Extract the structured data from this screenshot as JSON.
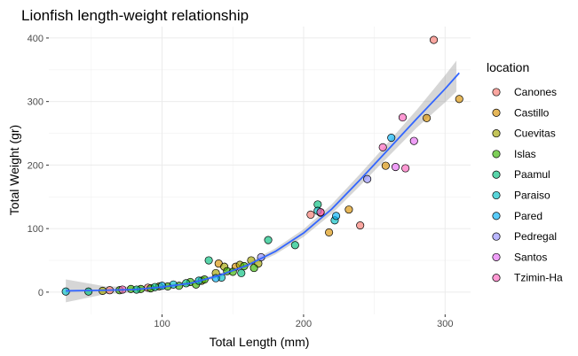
{
  "chart_data": {
    "type": "scatter",
    "title": "Lionfish length-weight relationship",
    "xlabel": "Total Length (mm)",
    "ylabel": "Total Weight (gr)",
    "xlim": [
      20,
      318
    ],
    "ylim": [
      -35,
      418
    ],
    "x_ticks": [
      100,
      200,
      300
    ],
    "y_ticks": [
      0,
      100,
      200,
      300,
      400
    ],
    "grid": true,
    "legend": {
      "title": "location",
      "position": "right"
    },
    "series": [
      {
        "name": "Canones",
        "color": "#F8766D",
        "points": [
          [
            63,
            3
          ],
          [
            90,
            7
          ],
          [
            205,
            122
          ],
          [
            212,
            125
          ],
          [
            240,
            105
          ],
          [
            292,
            397
          ]
        ]
      },
      {
        "name": "Castillo",
        "color": "#D89000",
        "points": [
          [
            140,
            45
          ],
          [
            152,
            40
          ],
          [
            218,
            94
          ],
          [
            232,
            130
          ],
          [
            258,
            199
          ],
          [
            287,
            274
          ],
          [
            310,
            304
          ]
        ]
      },
      {
        "name": "Cuevitas",
        "color": "#A3A500",
        "points": [
          [
            58,
            2
          ],
          [
            98,
            9
          ],
          [
            128,
            18
          ],
          [
            138,
            30
          ],
          [
            144,
            40
          ],
          [
            155,
            43
          ],
          [
            163,
            50
          ],
          [
            168,
            45
          ]
        ]
      },
      {
        "name": "Islas",
        "color": "#39B600",
        "points": [
          [
            70,
            3
          ],
          [
            78,
            5
          ],
          [
            85,
            5
          ],
          [
            92,
            6
          ],
          [
            104,
            9
          ],
          [
            112,
            10
          ],
          [
            120,
            16
          ],
          [
            124,
            12
          ],
          [
            130,
            20
          ],
          [
            146,
            33
          ],
          [
            150,
            32
          ],
          [
            158,
            41
          ],
          [
            165,
            38
          ]
        ]
      },
      {
        "name": "Paamul",
        "color": "#00BF7D",
        "points": [
          [
            48,
            1
          ],
          [
            82,
            4
          ],
          [
            95,
            8
          ],
          [
            117,
            14
          ],
          [
            133,
            50
          ],
          [
            156,
            30
          ],
          [
            175,
            82
          ],
          [
            194,
            74
          ],
          [
            210,
            138
          ]
        ]
      },
      {
        "name": "Paraiso",
        "color": "#00BFC4",
        "points": [
          [
            32,
            1
          ],
          [
            108,
            12
          ],
          [
            126,
            18
          ],
          [
            142,
            23
          ],
          [
            210,
            128
          ],
          [
            222,
            113
          ]
        ]
      },
      {
        "name": "Pared",
        "color": "#00B0F6",
        "points": [
          [
            100,
            10
          ],
          [
            138,
            22
          ],
          [
            223,
            120
          ],
          [
            262,
            243
          ]
        ]
      },
      {
        "name": "Pedregal",
        "color": "#9590FF",
        "points": [
          [
            170,
            55
          ],
          [
            245,
            178
          ]
        ]
      },
      {
        "name": "Santos",
        "color": "#E76BF3",
        "points": [
          [
            265,
            197
          ],
          [
            278,
            238
          ]
        ]
      },
      {
        "name": "Tzimin-Ha",
        "color": "#FF62BC",
        "points": [
          [
            72,
            4
          ],
          [
            212,
            126
          ],
          [
            256,
            228
          ],
          [
            270,
            275
          ],
          [
            272,
            195
          ]
        ]
      }
    ],
    "trend": {
      "color": "#3366FF",
      "points": [
        [
          32,
          2
        ],
        [
          60,
          3
        ],
        [
          80,
          4
        ],
        [
          100,
          8
        ],
        [
          120,
          14
        ],
        [
          140,
          26
        ],
        [
          160,
          42
        ],
        [
          180,
          64
        ],
        [
          200,
          93
        ],
        [
          220,
          131
        ],
        [
          240,
          177
        ],
        [
          260,
          225
        ],
        [
          280,
          273
        ],
        [
          300,
          320
        ],
        [
          310,
          345
        ]
      ],
      "band_half_width": [
        [
          32,
          18
        ],
        [
          60,
          6
        ],
        [
          100,
          3
        ],
        [
          150,
          3
        ],
        [
          200,
          6
        ],
        [
          250,
          10
        ],
        [
          280,
          14
        ],
        [
          310,
          25
        ]
      ]
    }
  }
}
